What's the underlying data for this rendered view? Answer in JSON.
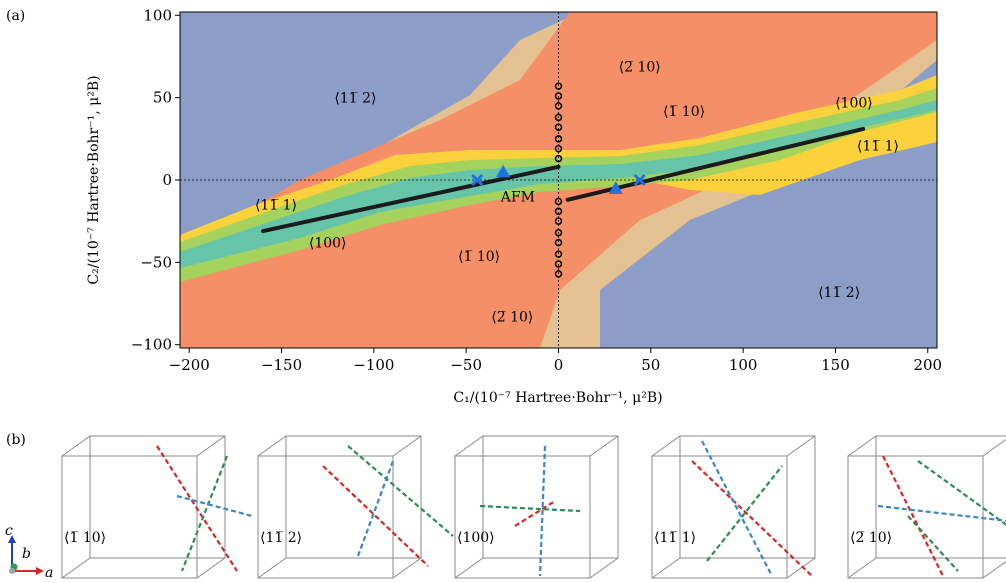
{
  "figure": {
    "panel_a_label": "(a)",
    "panel_b_label": "(b)"
  },
  "chart_data": [
    {
      "type": "heatmap",
      "panel": "(a)",
      "xlabel": "C₁/(10⁻⁷ Hartree·Bohr⁻¹, μ²B)",
      "ylabel": "C₂/(10⁻⁷ Hartree·Bohr⁻¹, μ²B)",
      "xlim": [
        -205,
        205
      ],
      "ylim": [
        -102,
        102
      ],
      "xticks": [
        -200,
        -150,
        -100,
        -50,
        0,
        50,
        100,
        150,
        200
      ],
      "yticks": [
        -100,
        -50,
        0,
        50,
        100
      ],
      "grid": false,
      "legend": "none",
      "phase_colors": {
        "112bar": "#8c9dc8",
        "2bar10": "#e3c190",
        "1bar10": "#f48f68",
        "100": "#a5d25c",
        "111bar": "#fbd23b",
        "AFM": "#66c5a9"
      },
      "region_labels": [
        {
          "text": "⟨11̅ 2⟩",
          "x": -110,
          "y": 50
        },
        {
          "text": "⟨2̅ 10⟩",
          "x": 44,
          "y": 69
        },
        {
          "text": "⟨1̅ 10⟩",
          "x": 68,
          "y": 42
        },
        {
          "text": "⟨100⟩",
          "x": 160,
          "y": 47
        },
        {
          "text": "⟨11̅ 1⟩",
          "x": 173,
          "y": 21
        },
        {
          "text": "⟨11̅ 1⟩",
          "x": -153,
          "y": -15
        },
        {
          "text": "AFM",
          "x": -22,
          "y": -10
        },
        {
          "text": "⟨100⟩",
          "x": -125,
          "y": -38
        },
        {
          "text": "⟨1̅ 10⟩",
          "x": -43,
          "y": -46
        },
        {
          "text": "⟨2̅ 10⟩",
          "x": -25,
          "y": -83
        },
        {
          "text": "⟨11̅ 2⟩",
          "x": 152,
          "y": -68
        }
      ],
      "lines": [
        {
          "x": [
            -160,
            0
          ],
          "y": [
            -31,
            8
          ]
        },
        {
          "x": [
            5,
            165
          ],
          "y": [
            -12,
            31
          ]
        }
      ],
      "x_markers": [
        {
          "x": -44,
          "y": 0
        },
        {
          "x": 44,
          "y": 0
        }
      ],
      "triangle_markers": [
        {
          "x": -30,
          "y": 5
        },
        {
          "x": 31,
          "y": -5
        }
      ],
      "dots_along_zero": [
        57,
        51,
        45,
        38,
        32,
        25,
        19,
        13,
        -13,
        -19,
        -25,
        -32,
        -38,
        -45,
        -51,
        -57
      ]
    },
    {
      "type": "other",
      "panel": "(b)",
      "boxes": [
        {
          "label": "⟨1̅ 10⟩"
        },
        {
          "label": "⟨11̅ 2⟩"
        },
        {
          "label": "⟨100⟩"
        },
        {
          "label": "⟨11̅ 1⟩"
        },
        {
          "label": "⟨2̅ 10⟩"
        }
      ],
      "axes": {
        "c": "c",
        "b": "b",
        "a": "a"
      },
      "colors": {
        "red": "#d62728",
        "green": "#2e8b57",
        "blue": "#3a86c8"
      }
    }
  ]
}
